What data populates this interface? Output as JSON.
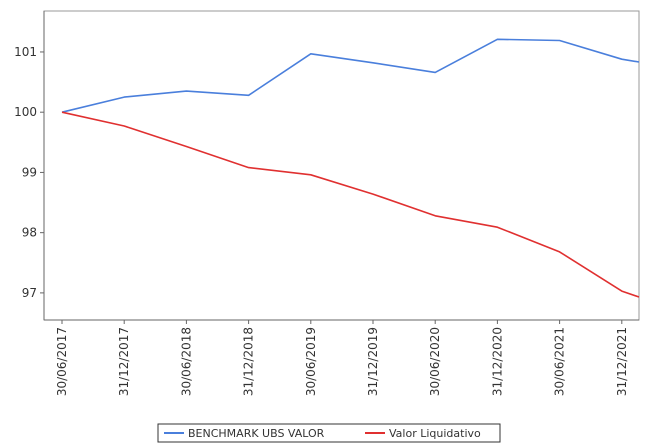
{
  "chart_data": {
    "type": "line",
    "categories": [
      "30/06/2017",
      "31/12/2017",
      "30/06/2018",
      "31/12/2018",
      "30/06/2019",
      "31/12/2019",
      "30/06/2020",
      "31/12/2020",
      "30/06/2021",
      "31/12/2021"
    ],
    "series": [
      {
        "name": "BENCHMARK UBS VALOR",
        "color": "#4a7fdc",
        "values": [
          100.0,
          100.25,
          100.35,
          100.28,
          100.97,
          100.82,
          100.66,
          101.21,
          101.19,
          100.88
        ]
      },
      {
        "name": "Valor Liquidativo",
        "color": "#e03030",
        "values": [
          100.0,
          99.77,
          99.43,
          99.08,
          98.96,
          98.64,
          98.28,
          98.09,
          97.68,
          97.03
        ]
      }
    ],
    "y_ticks": [
      "97",
      "98",
      "99",
      "100",
      "101"
    ],
    "ylim": [
      96.55,
      101.68
    ],
    "grid": false,
    "legend_position": "bottom"
  }
}
